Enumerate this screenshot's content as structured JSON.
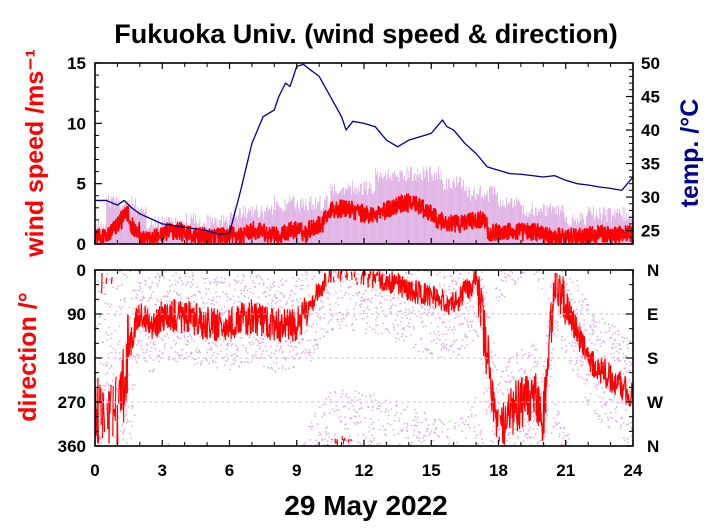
{
  "chart_data": {
    "title": "Fukuoka Univ. (wind speed & direction)",
    "xlabel": "29 May 2022",
    "x_ticks": [
      0,
      3,
      6,
      9,
      12,
      15,
      18,
      21,
      24
    ],
    "xlim": [
      0,
      24
    ],
    "colors": {
      "wind_speed": "#ff0000",
      "temperature": "#00008b",
      "scatter": "#d9a3df",
      "grid": "#dfb1e3",
      "axis": "#000000"
    },
    "panels": [
      {
        "type": "line",
        "name": "wind speed and temperature",
        "ylabel_left": "wind speed /ms⁻¹",
        "ylabel_right": "temp. /°C",
        "ylim_left": [
          0,
          15
        ],
        "ylim_right": [
          23,
          50
        ],
        "yticks_left": [
          0,
          5,
          10,
          15
        ],
        "yticks_right": [
          25,
          30,
          35,
          40,
          45,
          50
        ],
        "series": [
          {
            "axis": "right",
            "x": [
              0,
              0.5,
              1,
              1.3,
              1.6,
              2,
              3,
              4,
              5,
              5.5,
              5.8,
              6,
              6.5,
              7,
              7.5,
              8,
              8.2,
              8.5,
              8.7,
              9,
              9.3,
              9.6,
              10,
              10.5,
              11,
              11.2,
              11.5,
              12,
              12.5,
              13,
              13.5,
              14,
              14.5,
              15,
              15.5,
              15.7,
              16,
              16.5,
              17,
              17.5,
              18,
              18.5,
              19,
              19.5,
              20,
              20.5,
              21,
              21.5,
              22,
              22.5,
              23,
              23.5,
              24
            ],
            "y": [
              29.5,
              29.5,
              28.8,
              29.5,
              28.5,
              27.5,
              26,
              25.5,
              25,
              24.5,
              24.5,
              24.6,
              31,
              38,
              42,
              43,
              45,
              47,
              46.5,
              49.5,
              49.8,
              49,
              48,
              45,
              42,
              40,
              41.3,
              41,
              40.5,
              38.5,
              37.5,
              38.5,
              39,
              39.5,
              41.5,
              40.5,
              40,
              38,
              36.5,
              34.5,
              34,
              33.5,
              33.4,
              33.2,
              33,
              33.2,
              32.5,
              32,
              31.8,
              31.5,
              31.3,
              31,
              33
            ]
          }
        ],
        "wind_speed_shown_as": "dense red line with pale purple gust band"
      },
      {
        "type": "scatter",
        "name": "wind direction",
        "ylabel": "direction /°",
        "ylim": [
          0,
          360
        ],
        "yticks_left": [
          "0",
          "90",
          "180",
          "270",
          "360"
        ],
        "yticks_right": [
          "N",
          "E",
          "S",
          "W",
          "N"
        ],
        "direction_shown_as": "red line over pale purple scatter points"
      }
    ]
  }
}
